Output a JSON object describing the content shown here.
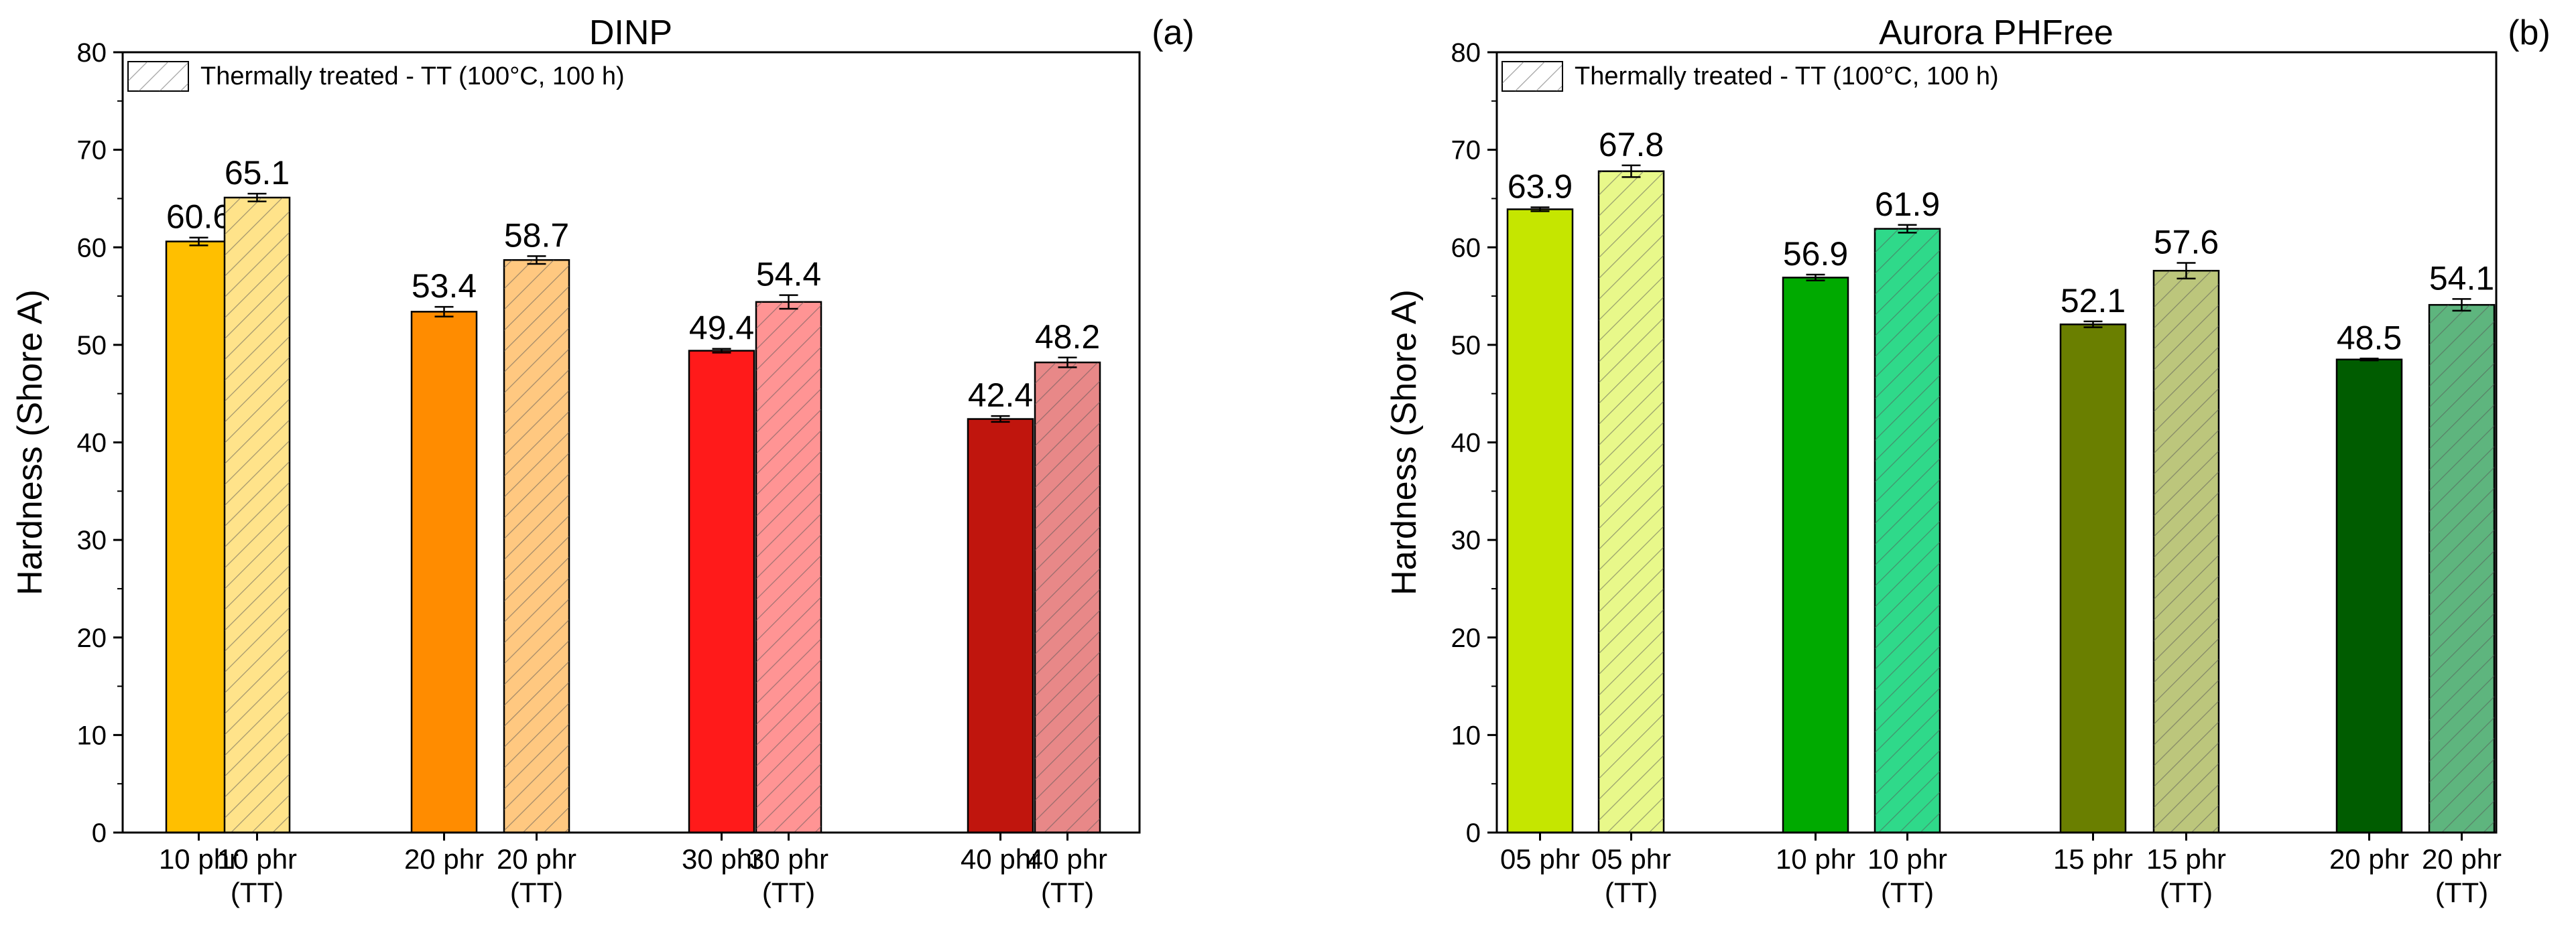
{
  "chart_data": [
    {
      "type": "bar",
      "panel": "(a)",
      "title": "DINP",
      "xlabel": "",
      "ylabel": "Hardness (Shore A)",
      "ylim": [
        0,
        80
      ],
      "yticks": [
        0,
        10,
        20,
        30,
        40,
        50,
        60,
        70,
        80
      ],
      "legend": {
        "label": "Thermally treated - TT (100°C, 100 h)",
        "position": "top-left"
      },
      "bars": [
        {
          "label": [
            "10 phr"
          ],
          "value": 60.6,
          "value_label": "60.6",
          "error": 0.4,
          "treated": false,
          "color": "#FFBF00"
        },
        {
          "label": [
            "10 phr",
            "(TT)"
          ],
          "value": 65.1,
          "value_label": "65.1",
          "error": 0.4,
          "treated": true,
          "color": "#FFE38A"
        },
        {
          "label": [
            "20 phr"
          ],
          "value": 53.4,
          "value_label": "53.4",
          "error": 0.5,
          "treated": false,
          "color": "#FF8C00"
        },
        {
          "label": [
            "20 phr",
            "(TT)"
          ],
          "value": 58.7,
          "value_label": "58.7",
          "error": 0.4,
          "treated": true,
          "color": "#FFC880"
        },
        {
          "label": [
            "30 phr"
          ],
          "value": 49.4,
          "value_label": "49.4",
          "error": 0.2,
          "treated": false,
          "color": "#FF1A1A"
        },
        {
          "label": [
            "30 phr",
            "(TT)"
          ],
          "value": 54.4,
          "value_label": "54.4",
          "error": 0.7,
          "treated": true,
          "color": "#FF9494"
        },
        {
          "label": [
            "40 phr"
          ],
          "value": 42.4,
          "value_label": "42.4",
          "error": 0.3,
          "treated": false,
          "color": "#C0150D"
        },
        {
          "label": [
            "40 phr",
            "(TT)"
          ],
          "value": 48.2,
          "value_label": "48.2",
          "error": 0.5,
          "treated": true,
          "color": "#E88888"
        }
      ]
    },
    {
      "type": "bar",
      "panel": "(b)",
      "title": "Aurora PHFree",
      "xlabel": "",
      "ylabel": "Hardness (Shore A)",
      "ylim": [
        0,
        80
      ],
      "yticks": [
        0,
        10,
        20,
        30,
        40,
        50,
        60,
        70,
        80
      ],
      "legend": {
        "label": "Thermally treated - TT (100°C, 100 h)",
        "position": "top-left"
      },
      "bars": [
        {
          "label": [
            "05 phr"
          ],
          "value": 63.9,
          "value_label": "63.9",
          "error": 0.2,
          "treated": false,
          "color": "#C5E600"
        },
        {
          "label": [
            "05 phr",
            "(TT)"
          ],
          "value": 67.8,
          "value_label": "67.8",
          "error": 0.6,
          "treated": true,
          "color": "#E8F88A"
        },
        {
          "label": [
            "10 phr"
          ],
          "value": 56.9,
          "value_label": "56.9",
          "error": 0.3,
          "treated": false,
          "color": "#00AA00"
        },
        {
          "label": [
            "10 phr",
            "(TT)"
          ],
          "value": 61.9,
          "value_label": "61.9",
          "error": 0.4,
          "treated": true,
          "color": "#2FD98A"
        },
        {
          "label": [
            "15 phr"
          ],
          "value": 52.1,
          "value_label": "52.1",
          "error": 0.3,
          "treated": false,
          "color": "#6A7F00"
        },
        {
          "label": [
            "15 phr",
            "(TT)"
          ],
          "value": 57.6,
          "value_label": "57.6",
          "error": 0.8,
          "treated": true,
          "color": "#BCC67C"
        },
        {
          "label": [
            "20 phr"
          ],
          "value": 48.5,
          "value_label": "48.5",
          "error": 0.1,
          "treated": false,
          "color": "#005C00"
        },
        {
          "label": [
            "20 phr",
            "(TT)"
          ],
          "value": 54.1,
          "value_label": "54.1",
          "error": 0.6,
          "treated": true,
          "color": "#5EB57E"
        }
      ]
    }
  ]
}
